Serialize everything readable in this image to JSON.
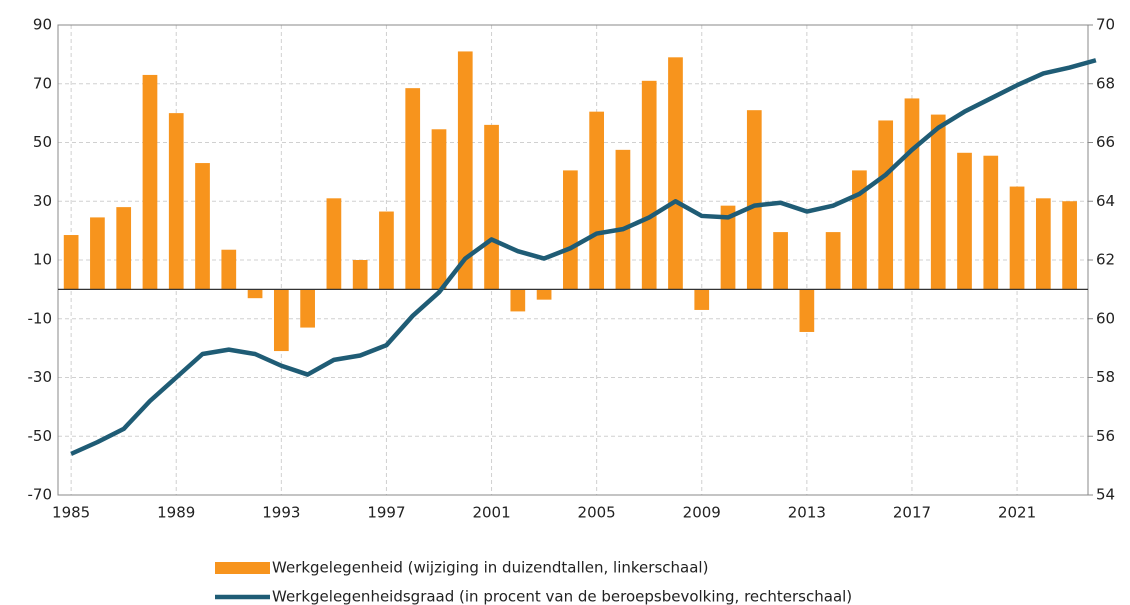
{
  "chart_data": {
    "type": "bar_line",
    "x": [
      1985,
      1986,
      1987,
      1988,
      1989,
      1990,
      1991,
      1992,
      1993,
      1994,
      1995,
      1996,
      1997,
      1998,
      1999,
      2000,
      2001,
      2002,
      2003,
      2004,
      2005,
      2006,
      2007,
      2008,
      2009,
      2010,
      2011,
      2012,
      2013,
      2014,
      2015,
      2016,
      2017,
      2018,
      2019,
      2020,
      2021,
      2022,
      2023,
      2024
    ],
    "series": [
      {
        "name": "Werkgelegenheid (wijziging in duizendtallen, linkerschaal)",
        "type": "bar",
        "color": "#f7941d",
        "values": [
          18.5,
          24.5,
          28,
          73,
          60,
          43,
          13.5,
          -3,
          -21,
          -13,
          31,
          10,
          26.5,
          68.5,
          54.5,
          81,
          56,
          -7.5,
          -3.5,
          40.5,
          60.5,
          47.5,
          71,
          79,
          -7,
          28.5,
          61,
          19.5,
          -14.5,
          19.5,
          40.5,
          57.5,
          65,
          59.5,
          46.5,
          45.5,
          35,
          31,
          30,
          null
        ]
      },
      {
        "name": "Werkgelegenheidsgraad (in procent van de beroepsbevolking, rechterschaal)",
        "type": "line",
        "axis": "y2",
        "color": "#1f5c75",
        "values": [
          55.4,
          55.8,
          56.25,
          57.2,
          58.0,
          58.8,
          58.95,
          58.8,
          58.4,
          58.1,
          58.6,
          58.75,
          59.1,
          60.1,
          60.9,
          62.05,
          62.7,
          62.3,
          62.05,
          62.4,
          62.9,
          63.05,
          63.45,
          64.0,
          63.5,
          63.45,
          63.85,
          63.95,
          63.65,
          63.85,
          64.25,
          64.9,
          65.75,
          66.5,
          67.05,
          67.5,
          67.95,
          68.35,
          68.55,
          68.8
        ]
      }
    ],
    "xlim": [
      1984.5,
      2023.7
    ],
    "xticks": [
      1985,
      1989,
      1993,
      1997,
      2001,
      2005,
      2009,
      2013,
      2017,
      2021
    ],
    "ylim": [
      -70,
      90
    ],
    "yticks": [
      -70,
      -50,
      -30,
      -10,
      10,
      30,
      50,
      70,
      90
    ],
    "y2lim": [
      54,
      70
    ],
    "y2ticks": [
      54,
      56,
      58,
      60,
      62,
      64,
      66,
      68,
      70
    ],
    "grid": true
  }
}
